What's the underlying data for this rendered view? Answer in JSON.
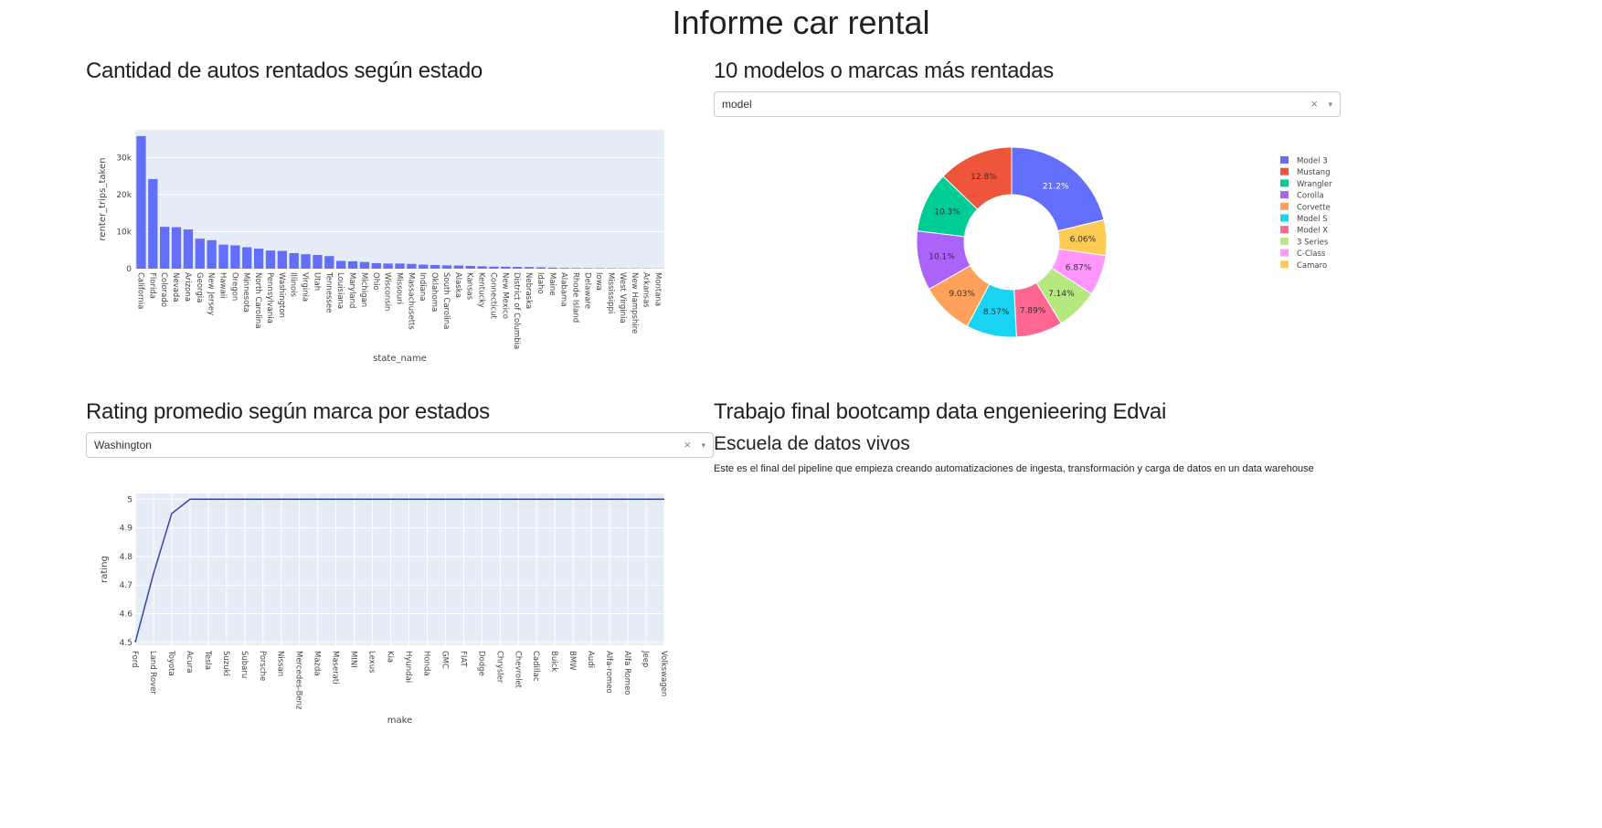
{
  "page": {
    "title": "Informe car rental"
  },
  "sections": {
    "states_title": "Cantidad de autos rentados según estado",
    "models_title": "10 modelos o marcas más rentadas",
    "rating_title": "Rating promedio según marca por estados",
    "info_title": "Trabajo final bootcamp data engenieering Edvai",
    "info_subtitle": "Escuela de datos vivos",
    "info_text": "Este es el final del pipeline que empieza creando automatizaciones de ingesta, transformación y carga de datos en un data warehouse"
  },
  "dropdowns": {
    "model_selector": {
      "value": "model",
      "clear": "×",
      "arrow": "▾"
    },
    "state_selector": {
      "value": "Washington",
      "clear": "×",
      "arrow": "▾"
    }
  },
  "chart_data": [
    {
      "type": "bar",
      "xlabel": "state_name",
      "ylabel": "renter_trips_taken",
      "ylim": [
        0,
        37500
      ],
      "yticks": [
        0,
        10000,
        20000,
        30000
      ],
      "ytick_labels": [
        "0",
        "10k",
        "20k",
        "30k"
      ],
      "grid": true,
      "bar_color": "#636efa",
      "categories": [
        "California",
        "Florida",
        "Colorado",
        "Nevada",
        "Arizona",
        "Georgia",
        "New Jersey",
        "Hawaii",
        "Oregon",
        "Minnesota",
        "North Carolina",
        "Pennsylvania",
        "Washington",
        "Illinois",
        "Virginia",
        "Utah",
        "Tennessee",
        "Louisiana",
        "Maryland",
        "Michigan",
        "Ohio",
        "Wisconsin",
        "Missouri",
        "Massachusetts",
        "Indiana",
        "Oklahoma",
        "South Carolina",
        "Alaska",
        "Kansas",
        "Kentucky",
        "Connecticut",
        "New Mexico",
        "District of Columbia",
        "Nebraska",
        "Idaho",
        "Maine",
        "Alabama",
        "Rhode Island",
        "Delaware",
        "Iowa",
        "Mississippi",
        "West Virginia",
        "New Hampshire",
        "Arkansas",
        "Montana"
      ],
      "values": [
        35800,
        24200,
        11300,
        11200,
        10600,
        8100,
        7700,
        6500,
        6300,
        5800,
        5400,
        4900,
        4800,
        4200,
        3900,
        3700,
        3400,
        2100,
        2000,
        1800,
        1500,
        1400,
        1400,
        1300,
        1100,
        1000,
        900,
        850,
        750,
        650,
        550,
        520,
        480,
        430,
        380,
        280,
        200,
        170,
        150,
        130,
        110,
        90,
        80,
        60,
        50
      ]
    },
    {
      "type": "pie",
      "hole": 0.5,
      "legend_position": "right",
      "labels": [
        "Model 3",
        "Mustang",
        "Wrangler",
        "Corolla",
        "Corvette",
        "Model S",
        "Model X",
        "3 Series",
        "C-Class",
        "Camaro"
      ],
      "values": [
        21.2,
        12.8,
        10.3,
        10.1,
        9.03,
        8.57,
        7.89,
        7.14,
        6.87,
        6.06
      ],
      "value_labels": [
        "21.2%",
        "12.8%",
        "10.3%",
        "10.1%",
        "9.03%",
        "8.57%",
        "7.89%",
        "7.14%",
        "6.87%",
        "6.06%"
      ],
      "colors": [
        "#636efa",
        "#ef553b",
        "#00cc96",
        "#ab63fa",
        "#ffa15a",
        "#19d3f3",
        "#ff6692",
        "#b6e880",
        "#ff97ff",
        "#fecb52"
      ],
      "slice_order": [
        0,
        9,
        8,
        7,
        6,
        5,
        4,
        3,
        2,
        1
      ]
    },
    {
      "type": "line",
      "xlabel": "make",
      "ylabel": "rating",
      "ylim": [
        4.49,
        5.02
      ],
      "yticks": [
        4.5,
        4.6,
        4.7,
        4.8,
        4.9,
        5
      ],
      "ytick_labels": [
        "4.5",
        "4.6",
        "4.7",
        "4.8",
        "4.9",
        "5"
      ],
      "grid": true,
      "line_color": "#3244a8",
      "categories": [
        "Ford",
        "Land Rover",
        "Toyota",
        "Acura",
        "Tesla",
        "Suzuki",
        "Subaru",
        "Porsche",
        "Nissan",
        "Mercedes-Benz",
        "Mazda",
        "Maserati",
        "MINI",
        "Lexus",
        "Kia",
        "Hyundai",
        "Honda",
        "GMC",
        "FIAT",
        "Dodge",
        "Chrysler",
        "Chevrolet",
        "Cadillac",
        "Buick",
        "BMW",
        "Audi",
        "Alfa-romeo",
        "Alfa Romeo",
        "Jeep",
        "Volkswagen"
      ],
      "values": [
        4.5,
        4.74,
        4.95,
        5,
        5,
        5,
        5,
        5,
        5,
        5,
        5,
        5,
        5,
        5,
        5,
        5,
        5,
        5,
        5,
        5,
        5,
        5,
        5,
        5,
        5,
        5,
        5,
        5,
        5,
        5
      ]
    }
  ]
}
